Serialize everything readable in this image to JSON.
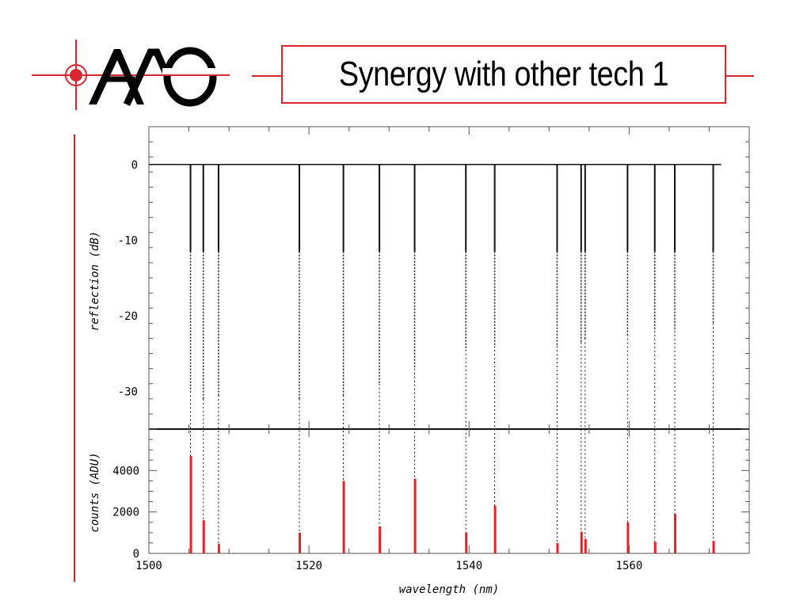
{
  "slide": {
    "title": "Synergy with other tech 1",
    "accent_color": "#d7262d"
  },
  "logo": {
    "icon": "aao-logo-icon"
  },
  "chart_data": [
    {
      "type": "line",
      "panel": "top",
      "ylabel": "reflection (dB)",
      "xlabel": "",
      "xlim": [
        1500,
        1575
      ],
      "ylim": [
        -35,
        5
      ],
      "yticks": [
        0,
        -10,
        -20,
        -30
      ],
      "baseline_db": 0,
      "dips": [
        {
          "x": 1505.2,
          "y": -30.0
        },
        {
          "x": 1506.8,
          "y": -31.0
        },
        {
          "x": 1508.7,
          "y": -30.5
        },
        {
          "x": 1518.8,
          "y": -31.0
        },
        {
          "x": 1524.3,
          "y": -30.5
        },
        {
          "x": 1528.8,
          "y": -29.0
        },
        {
          "x": 1533.2,
          "y": -27.0
        },
        {
          "x": 1539.6,
          "y": -24.5
        },
        {
          "x": 1543.2,
          "y": -24.0
        },
        {
          "x": 1551.0,
          "y": -24.0
        },
        {
          "x": 1554.0,
          "y": -23.5
        },
        {
          "x": 1554.5,
          "y": -23.0
        },
        {
          "x": 1559.8,
          "y": -22.5
        },
        {
          "x": 1563.2,
          "y": -22.0
        },
        {
          "x": 1565.7,
          "y": -22.0
        },
        {
          "x": 1570.5,
          "y": -21.0
        }
      ]
    },
    {
      "type": "bar",
      "panel": "bottom",
      "ylabel": "counts (ADU)",
      "xlabel": "wavelength (nm)",
      "xlim": [
        1500,
        1575
      ],
      "ylim": [
        0,
        6000
      ],
      "xticks": [
        1500,
        1520,
        1540,
        1560
      ],
      "yticks": [
        0,
        2000,
        4000
      ],
      "bar_color": "#e8202a",
      "bars": [
        {
          "x": 1505.2,
          "y": 4700
        },
        {
          "x": 1506.8,
          "y": 1600
        },
        {
          "x": 1508.7,
          "y": 450
        },
        {
          "x": 1518.8,
          "y": 1000
        },
        {
          "x": 1524.3,
          "y": 3500
        },
        {
          "x": 1528.8,
          "y": 1300
        },
        {
          "x": 1533.2,
          "y": 3600
        },
        {
          "x": 1539.6,
          "y": 1000
        },
        {
          "x": 1543.2,
          "y": 2300
        },
        {
          "x": 1551.0,
          "y": 500
        },
        {
          "x": 1554.0,
          "y": 1050
        },
        {
          "x": 1554.5,
          "y": 700
        },
        {
          "x": 1559.8,
          "y": 1500
        },
        {
          "x": 1563.2,
          "y": 550
        },
        {
          "x": 1565.7,
          "y": 1900
        },
        {
          "x": 1570.5,
          "y": 600
        }
      ]
    }
  ]
}
